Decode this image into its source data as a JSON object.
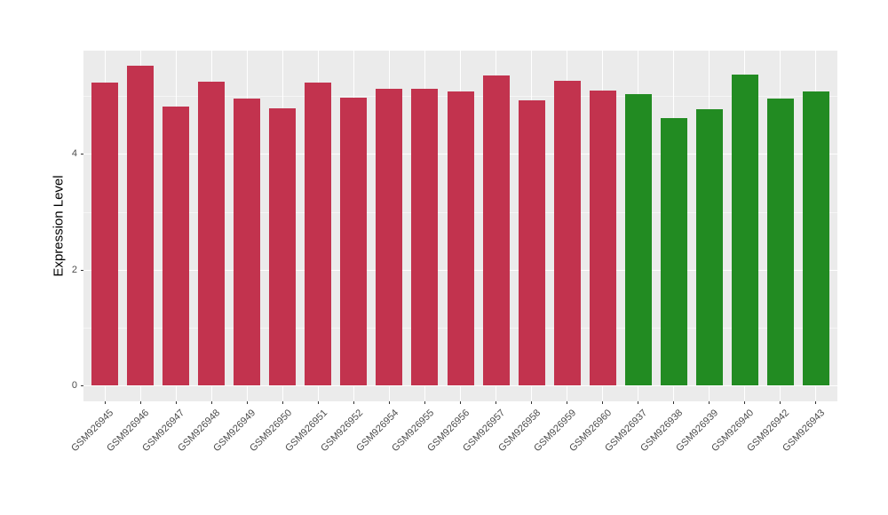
{
  "figure": {
    "background_color": "#FFFFFF",
    "panel_background_color": "#EBEBEB",
    "grid_major_color": "#FFFFFF",
    "grid_minor_color": "rgba(255,255,255,0.55)",
    "tick_mark_color": "#333333",
    "tick_label_color": "#4D4D4D",
    "axis_title_color": "#000000"
  },
  "chart_data": {
    "type": "bar",
    "title": "",
    "xlabel": "",
    "ylabel": "Expression Level",
    "ylim": [
      0,
      5.8
    ],
    "yticks": [
      0,
      2,
      4
    ],
    "yticks_minor": [
      1,
      3,
      5
    ],
    "grid": true,
    "legend_position": "none",
    "categories": [
      "GSM926945",
      "GSM926946",
      "GSM926947",
      "GSM926948",
      "GSM926949",
      "GSM926950",
      "GSM926951",
      "GSM926952",
      "GSM926954",
      "GSM926955",
      "GSM926956",
      "GSM926957",
      "GSM926958",
      "GSM926959",
      "GSM926960",
      "GSM926937",
      "GSM926938",
      "GSM926939",
      "GSM926940",
      "GSM926942",
      "GSM926943"
    ],
    "values": [
      5.23,
      5.52,
      4.82,
      5.25,
      4.96,
      4.79,
      5.24,
      4.98,
      5.13,
      5.13,
      5.08,
      5.35,
      4.93,
      5.27,
      5.09,
      5.04,
      4.62,
      4.78,
      5.38,
      4.96,
      5.08
    ],
    "bar_group_of_each_category": [
      "red",
      "red",
      "red",
      "red",
      "red",
      "red",
      "red",
      "red",
      "red",
      "red",
      "red",
      "red",
      "red",
      "red",
      "red",
      "green",
      "green",
      "green",
      "green",
      "green",
      "green"
    ],
    "group_colors": {
      "red": "#C2334E",
      "green": "#228B22"
    }
  }
}
